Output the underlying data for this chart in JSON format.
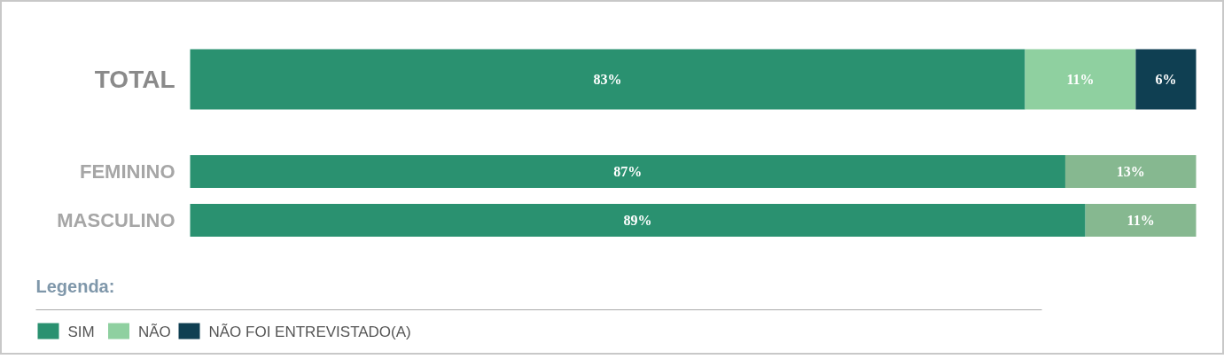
{
  "chart_data": {
    "type": "bar",
    "orientation": "horizontal",
    "stacked": true,
    "categories": [
      "TOTAL",
      "FEMININO",
      "MASCULINO"
    ],
    "xlim": [
      0,
      100
    ],
    "tick_labels": "y",
    "grid": false,
    "legend": "bottom",
    "legend_title": "Legenda:",
    "series": [
      {
        "name": "SIM",
        "color": "#2a9170",
        "values": [
          83,
          87,
          89
        ],
        "value_labels": [
          "83%",
          "87%",
          "89%"
        ]
      },
      {
        "name": "NÃO",
        "color": "#8fd0a0",
        "colors": [
          "#8fd0a0",
          "#86b890",
          "#86b890"
        ],
        "values": [
          11,
          13,
          11
        ],
        "value_labels": [
          "11%",
          "13%",
          "11%"
        ]
      },
      {
        "name": "NÃO FOI ENTREVISTADO(A)",
        "color": "#0f3f52",
        "values": [
          6,
          null,
          null
        ],
        "value_labels": [
          "6%",
          null,
          null
        ]
      }
    ]
  }
}
